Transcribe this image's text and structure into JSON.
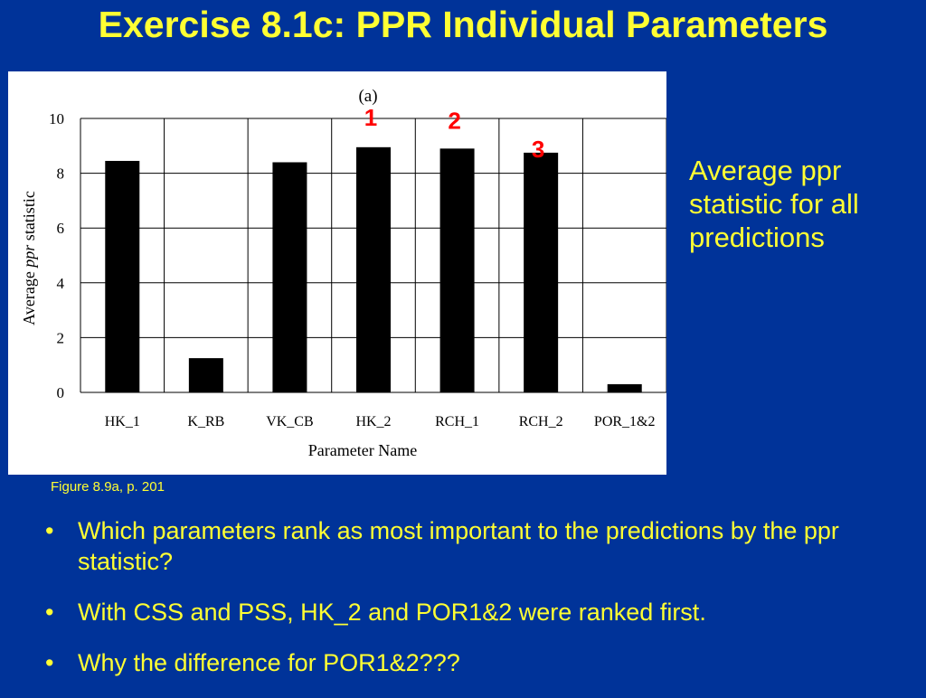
{
  "slide": {
    "title": "Exercise 8.1c: PPR Individual Parameters",
    "caption": "Figure 8.9a, p. 201",
    "side_note": "Average ppr statistic for all predictions",
    "bullets": [
      "Which parameters rank as most important to the predictions by the ppr statistic?",
      "With CSS and PSS, HK_2 and POR1&2 were ranked first.",
      "Why the difference for POR1&2???"
    ]
  },
  "chart_data": {
    "type": "bar",
    "title": "(a)",
    "xlabel": "Parameter Name",
    "ylabel_prefix": "Average ",
    "ylabel_italic": "ppr",
    "ylabel_suffix": " statistic",
    "categories": [
      "HK_1",
      "K_RB",
      "VK_CB",
      "HK_2",
      "RCH_1",
      "RCH_2",
      "POR_1&2"
    ],
    "values": [
      8.45,
      1.25,
      8.4,
      8.95,
      8.9,
      8.75,
      0.3
    ],
    "ylim": [
      0,
      10
    ],
    "yticks": [
      "0",
      "2",
      "4",
      "6",
      "8",
      "10"
    ],
    "grid": true,
    "bar_color": "#000000",
    "rank_color": "#ff0000",
    "rank_labels": [
      {
        "category": "HK_2",
        "label": "1"
      },
      {
        "category": "RCH_1",
        "label": "2"
      },
      {
        "category": "RCH_2",
        "label": "3"
      }
    ]
  }
}
